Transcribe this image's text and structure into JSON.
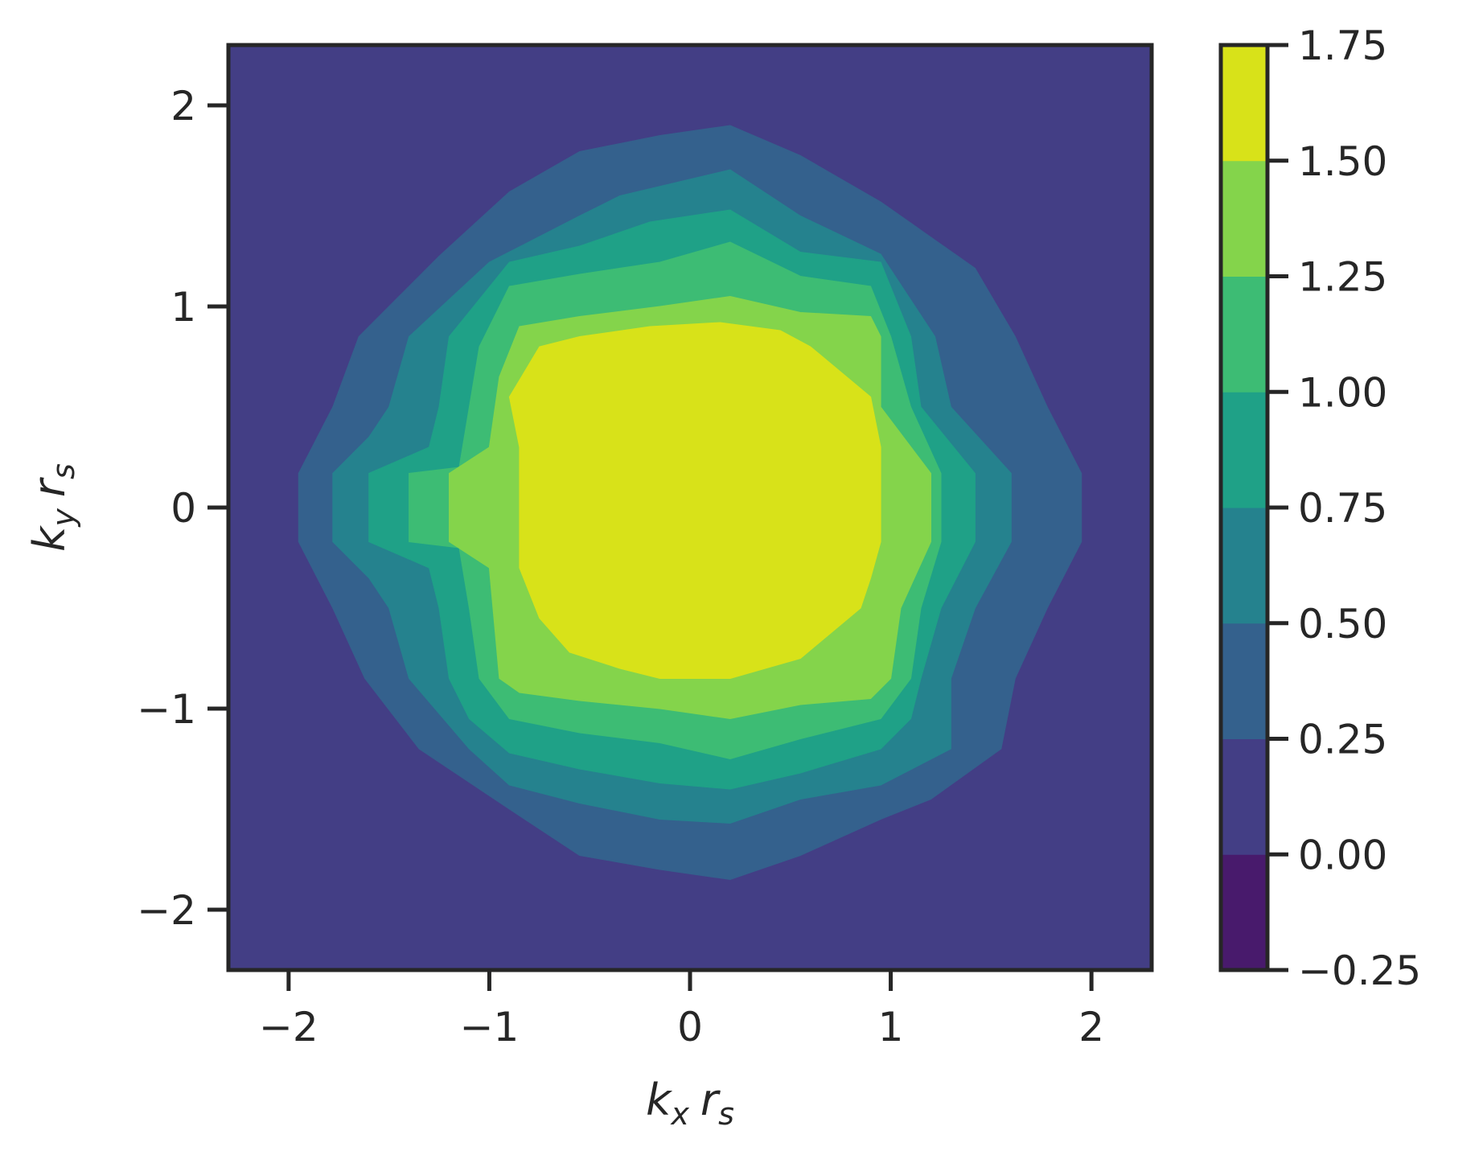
{
  "chart_data": {
    "type": "contour",
    "xlabel": "k_x r_s",
    "ylabel": "k_y r_s",
    "xlim": [
      -2.3,
      2.3
    ],
    "ylim": [
      -2.3,
      2.3
    ],
    "x_ticks": [
      -2,
      -1,
      0,
      1,
      2
    ],
    "x_tick_labels": [
      "−2",
      "−1",
      "0",
      "1",
      "2"
    ],
    "y_ticks": [
      -2,
      -1,
      0,
      1,
      2
    ],
    "y_tick_labels": [
      "−2",
      "−1",
      "0",
      "1",
      "2"
    ],
    "grid": false,
    "colorbar": {
      "levels": [
        -0.25,
        0.0,
        0.25,
        0.5,
        0.75,
        1.0,
        1.25,
        1.5,
        1.75
      ],
      "tick_labels": [
        "−0.25",
        "0.00",
        "0.25",
        "0.50",
        "0.75",
        "1.00",
        "1.25",
        "1.50",
        "1.75"
      ],
      "colors": [
        "#481a6c",
        "#433e85",
        "#34618d",
        "#25828e",
        "#1fa187",
        "#3dbc74",
        "#84d44b",
        "#d8e219"
      ]
    },
    "background_level_index": 1,
    "contours": [
      {
        "level_min": 0.25,
        "polygon": [
          [
            -1.95,
            0.17
          ],
          [
            -1.78,
            0.5
          ],
          [
            -1.65,
            0.85
          ],
          [
            -1.25,
            1.25
          ],
          [
            -0.9,
            1.57
          ],
          [
            -0.55,
            1.77
          ],
          [
            -0.15,
            1.85
          ],
          [
            0.2,
            1.9
          ],
          [
            0.55,
            1.75
          ],
          [
            0.95,
            1.52
          ],
          [
            1.42,
            1.19
          ],
          [
            1.62,
            0.85
          ],
          [
            1.78,
            0.5
          ],
          [
            1.95,
            0.17
          ],
          [
            1.95,
            -0.17
          ],
          [
            1.78,
            -0.5
          ],
          [
            1.62,
            -0.85
          ],
          [
            1.55,
            -1.2
          ],
          [
            1.2,
            -1.45
          ],
          [
            0.95,
            -1.55
          ],
          [
            0.55,
            -1.73
          ],
          [
            0.2,
            -1.85
          ],
          [
            -0.15,
            -1.8
          ],
          [
            -0.55,
            -1.73
          ],
          [
            -0.9,
            -1.5
          ],
          [
            -1.35,
            -1.2
          ],
          [
            -1.62,
            -0.85
          ],
          [
            -1.78,
            -0.5
          ],
          [
            -1.95,
            -0.17
          ]
        ]
      },
      {
        "level_min": 0.5,
        "polygon": [
          [
            -1.78,
            0.17
          ],
          [
            -1.6,
            0.35
          ],
          [
            -1.5,
            0.5
          ],
          [
            -1.4,
            0.85
          ],
          [
            -1.0,
            1.22
          ],
          [
            -0.55,
            1.45
          ],
          [
            -0.35,
            1.55
          ],
          [
            0.2,
            1.68
          ],
          [
            0.55,
            1.45
          ],
          [
            0.95,
            1.26
          ],
          [
            1.22,
            0.85
          ],
          [
            1.3,
            0.5
          ],
          [
            1.6,
            0.17
          ],
          [
            1.6,
            -0.17
          ],
          [
            1.42,
            -0.5
          ],
          [
            1.3,
            -0.85
          ],
          [
            1.3,
            -1.2
          ],
          [
            0.95,
            -1.38
          ],
          [
            0.55,
            -1.45
          ],
          [
            0.2,
            -1.57
          ],
          [
            -0.15,
            -1.55
          ],
          [
            -0.55,
            -1.47
          ],
          [
            -0.9,
            -1.38
          ],
          [
            -1.1,
            -1.2
          ],
          [
            -1.4,
            -0.85
          ],
          [
            -1.5,
            -0.5
          ],
          [
            -1.6,
            -0.35
          ],
          [
            -1.78,
            -0.17
          ]
        ]
      },
      {
        "level_min": 0.75,
        "polygon": [
          [
            -1.6,
            0.17
          ],
          [
            -1.3,
            0.3
          ],
          [
            -1.25,
            0.5
          ],
          [
            -1.2,
            0.85
          ],
          [
            -0.9,
            1.22
          ],
          [
            -0.55,
            1.3
          ],
          [
            -0.2,
            1.42
          ],
          [
            0.2,
            1.48
          ],
          [
            0.55,
            1.27
          ],
          [
            0.95,
            1.22
          ],
          [
            1.1,
            0.85
          ],
          [
            1.15,
            0.5
          ],
          [
            1.42,
            0.17
          ],
          [
            1.42,
            -0.17
          ],
          [
            1.25,
            -0.5
          ],
          [
            1.15,
            -0.85
          ],
          [
            1.1,
            -1.05
          ],
          [
            0.95,
            -1.2
          ],
          [
            0.55,
            -1.32
          ],
          [
            0.2,
            -1.4
          ],
          [
            -0.15,
            -1.37
          ],
          [
            -0.55,
            -1.3
          ],
          [
            -0.9,
            -1.22
          ],
          [
            -1.1,
            -1.05
          ],
          [
            -1.2,
            -0.85
          ],
          [
            -1.25,
            -0.5
          ],
          [
            -1.3,
            -0.3
          ],
          [
            -1.6,
            -0.17
          ]
        ]
      },
      {
        "level_min": 1.0,
        "polygon": [
          [
            -1.4,
            0.17
          ],
          [
            -1.15,
            0.2
          ],
          [
            -1.1,
            0.5
          ],
          [
            -1.05,
            0.8
          ],
          [
            -0.9,
            1.1
          ],
          [
            -0.55,
            1.16
          ],
          [
            -0.15,
            1.22
          ],
          [
            0.2,
            1.32
          ],
          [
            0.55,
            1.15
          ],
          [
            0.9,
            1.1
          ],
          [
            1.0,
            0.85
          ],
          [
            1.1,
            0.5
          ],
          [
            1.25,
            0.17
          ],
          [
            1.25,
            -0.17
          ],
          [
            1.15,
            -0.5
          ],
          [
            1.1,
            -0.85
          ],
          [
            0.95,
            -1.05
          ],
          [
            0.55,
            -1.15
          ],
          [
            0.2,
            -1.25
          ],
          [
            -0.15,
            -1.17
          ],
          [
            -0.55,
            -1.12
          ],
          [
            -0.9,
            -1.05
          ],
          [
            -1.05,
            -0.85
          ],
          [
            -1.1,
            -0.5
          ],
          [
            -1.15,
            -0.2
          ],
          [
            -1.4,
            -0.17
          ]
        ]
      },
      {
        "level_min": 1.25,
        "polygon": [
          [
            -1.2,
            0.17
          ],
          [
            -1.0,
            0.3
          ],
          [
            -0.95,
            0.65
          ],
          [
            -0.85,
            0.9
          ],
          [
            -0.55,
            0.95
          ],
          [
            -0.15,
            1.0
          ],
          [
            0.2,
            1.05
          ],
          [
            0.55,
            0.97
          ],
          [
            0.9,
            0.95
          ],
          [
            0.95,
            0.85
          ],
          [
            0.95,
            0.5
          ],
          [
            1.2,
            0.17
          ],
          [
            1.2,
            -0.17
          ],
          [
            1.05,
            -0.5
          ],
          [
            1.0,
            -0.85
          ],
          [
            0.9,
            -0.95
          ],
          [
            0.55,
            -0.98
          ],
          [
            0.2,
            -1.05
          ],
          [
            -0.15,
            -1.0
          ],
          [
            -0.55,
            -0.96
          ],
          [
            -0.85,
            -0.92
          ],
          [
            -0.95,
            -0.85
          ],
          [
            -1.0,
            -0.3
          ],
          [
            -1.2,
            -0.17
          ]
        ]
      },
      {
        "level_min": 1.5,
        "polygon": [
          [
            -0.85,
            0.17
          ],
          [
            -0.85,
            0.3
          ],
          [
            -0.9,
            0.55
          ],
          [
            -0.75,
            0.8
          ],
          [
            -0.55,
            0.85
          ],
          [
            -0.2,
            0.9
          ],
          [
            0.15,
            0.92
          ],
          [
            0.45,
            0.88
          ],
          [
            0.6,
            0.8
          ],
          [
            0.9,
            0.55
          ],
          [
            0.95,
            0.3
          ],
          [
            0.95,
            0.17
          ],
          [
            0.95,
            -0.17
          ],
          [
            0.9,
            -0.35
          ],
          [
            0.85,
            -0.5
          ],
          [
            0.55,
            -0.75
          ],
          [
            0.2,
            -0.85
          ],
          [
            -0.15,
            -0.85
          ],
          [
            -0.35,
            -0.8
          ],
          [
            -0.6,
            -0.72
          ],
          [
            -0.75,
            -0.55
          ],
          [
            -0.85,
            -0.3
          ],
          [
            -0.85,
            -0.17
          ]
        ]
      }
    ]
  }
}
